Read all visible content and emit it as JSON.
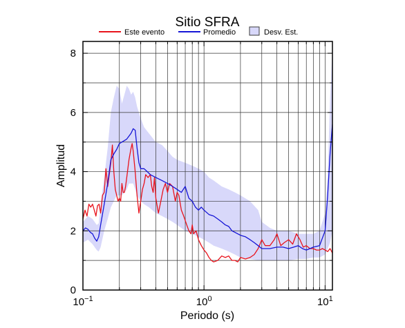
{
  "chart_data": {
    "type": "line",
    "title": "Sitio SFRA",
    "xlabel": "Periodo (s)",
    "ylabel": "Amplitud",
    "x_scale": "log",
    "xlim": [
      0.1,
      11.5
    ],
    "ylim": [
      0,
      8.4
    ],
    "grid": true,
    "legend_position": "top",
    "x_ticks": [
      {
        "value": 0.1,
        "base": "10",
        "exp": "−1"
      },
      {
        "value": 1,
        "base": "10",
        "exp": "0"
      },
      {
        "value": 10,
        "base": "10",
        "exp": "1"
      }
    ],
    "y_ticks": [
      0,
      2,
      4,
      6,
      8
    ],
    "colors": {
      "este_evento": "#e8121b",
      "promedio": "#1414d6",
      "desv_fill": "#d8d8fa",
      "desv_edge": "#3a3a3a"
    },
    "legend": [
      {
        "label": "Este evento",
        "kind": "line",
        "color": "#e8121b"
      },
      {
        "label": "Promedio",
        "kind": "line",
        "color": "#1414d6"
      },
      {
        "label": "Desv. Est.",
        "kind": "box",
        "color": "#d8d8fa"
      }
    ],
    "series": [
      {
        "name": "Este evento",
        "color": "#e8121b",
        "points": [
          [
            0.1,
            2.4
          ],
          [
            0.104,
            2.7
          ],
          [
            0.108,
            2.5
          ],
          [
            0.112,
            2.9
          ],
          [
            0.116,
            2.8
          ],
          [
            0.12,
            2.9
          ],
          [
            0.124,
            2.7
          ],
          [
            0.128,
            2.5
          ],
          [
            0.132,
            2.85
          ],
          [
            0.136,
            2.9
          ],
          [
            0.14,
            2.6
          ],
          [
            0.145,
            3.2
          ],
          [
            0.15,
            3.3
          ],
          [
            0.155,
            4.1
          ],
          [
            0.16,
            3.5
          ],
          [
            0.165,
            3.9
          ],
          [
            0.17,
            4.3
          ],
          [
            0.175,
            4.9
          ],
          [
            0.18,
            4.0
          ],
          [
            0.185,
            3.4
          ],
          [
            0.19,
            3.2
          ],
          [
            0.195,
            3.0
          ],
          [
            0.2,
            3.1
          ],
          [
            0.205,
            3.0
          ],
          [
            0.21,
            3.6
          ],
          [
            0.215,
            3.3
          ],
          [
            0.22,
            3.3
          ],
          [
            0.225,
            3.5
          ],
          [
            0.23,
            3.8
          ],
          [
            0.24,
            4.4
          ],
          [
            0.25,
            4.8
          ],
          [
            0.255,
            4.95
          ],
          [
            0.26,
            4.7
          ],
          [
            0.27,
            4.0
          ],
          [
            0.28,
            3.2
          ],
          [
            0.29,
            2.6
          ],
          [
            0.3,
            3.0
          ],
          [
            0.31,
            3.4
          ],
          [
            0.32,
            3.6
          ],
          [
            0.33,
            3.9
          ],
          [
            0.345,
            3.8
          ],
          [
            0.36,
            3.9
          ],
          [
            0.37,
            3.5
          ],
          [
            0.38,
            3.3
          ],
          [
            0.39,
            3.8
          ],
          [
            0.4,
            3.1
          ],
          [
            0.42,
            2.6
          ],
          [
            0.44,
            3.0
          ],
          [
            0.46,
            3.4
          ],
          [
            0.48,
            3.6
          ],
          [
            0.5,
            3.3
          ],
          [
            0.52,
            3.6
          ],
          [
            0.55,
            3.5
          ],
          [
            0.58,
            3.0
          ],
          [
            0.6,
            3.3
          ],
          [
            0.62,
            3.2
          ],
          [
            0.65,
            2.7
          ],
          [
            0.68,
            2.5
          ],
          [
            0.72,
            2.2
          ],
          [
            0.75,
            2.0
          ],
          [
            0.78,
            1.9
          ],
          [
            0.8,
            2.2
          ],
          [
            0.82,
            1.9
          ],
          [
            0.86,
            2.0
          ],
          [
            0.9,
            1.7
          ],
          [
            0.95,
            1.5
          ],
          [
            1.0,
            1.35
          ],
          [
            1.05,
            1.25
          ],
          [
            1.1,
            1.1
          ],
          [
            1.15,
            1.0
          ],
          [
            1.2,
            0.95
          ],
          [
            1.3,
            1.0
          ],
          [
            1.4,
            1.15
          ],
          [
            1.5,
            1.1
          ],
          [
            1.6,
            1.15
          ],
          [
            1.7,
            1.0
          ],
          [
            1.8,
            1.0
          ],
          [
            1.9,
            0.95
          ],
          [
            2.0,
            1.1
          ],
          [
            2.2,
            1.05
          ],
          [
            2.4,
            1.1
          ],
          [
            2.6,
            1.2
          ],
          [
            2.8,
            1.4
          ],
          [
            3.0,
            1.7
          ],
          [
            3.2,
            1.5
          ],
          [
            3.5,
            1.5
          ],
          [
            3.8,
            1.7
          ],
          [
            4.0,
            1.9
          ],
          [
            4.3,
            1.5
          ],
          [
            4.6,
            1.6
          ],
          [
            5.0,
            1.7
          ],
          [
            5.4,
            1.55
          ],
          [
            5.8,
            1.9
          ],
          [
            6.2,
            1.7
          ],
          [
            6.6,
            1.45
          ],
          [
            7.0,
            1.5
          ],
          [
            7.5,
            1.4
          ],
          [
            8.0,
            1.4
          ],
          [
            8.5,
            1.35
          ],
          [
            9.0,
            1.35
          ],
          [
            9.5,
            1.4
          ],
          [
            10.0,
            1.35
          ],
          [
            10.5,
            1.3
          ],
          [
            11.0,
            1.4
          ],
          [
            11.5,
            1.25
          ]
        ]
      },
      {
        "name": "Promedio",
        "color": "#1414d6",
        "points": [
          [
            0.1,
            2.0
          ],
          [
            0.105,
            2.1
          ],
          [
            0.11,
            2.05
          ],
          [
            0.115,
            1.95
          ],
          [
            0.12,
            1.9
          ],
          [
            0.125,
            1.75
          ],
          [
            0.13,
            1.65
          ],
          [
            0.135,
            1.8
          ],
          [
            0.14,
            2.2
          ],
          [
            0.15,
            2.9
          ],
          [
            0.16,
            3.6
          ],
          [
            0.17,
            4.4
          ],
          [
            0.18,
            4.6
          ],
          [
            0.19,
            4.75
          ],
          [
            0.2,
            4.95
          ],
          [
            0.21,
            5.0
          ],
          [
            0.22,
            5.05
          ],
          [
            0.23,
            5.1
          ],
          [
            0.24,
            5.2
          ],
          [
            0.25,
            5.3
          ],
          [
            0.26,
            5.45
          ],
          [
            0.27,
            5.4
          ],
          [
            0.28,
            4.8
          ],
          [
            0.29,
            4.3
          ],
          [
            0.3,
            4.1
          ],
          [
            0.32,
            4.1
          ],
          [
            0.34,
            4.0
          ],
          [
            0.36,
            3.9
          ],
          [
            0.4,
            3.8
          ],
          [
            0.45,
            3.7
          ],
          [
            0.5,
            3.6
          ],
          [
            0.55,
            3.5
          ],
          [
            0.6,
            3.4
          ],
          [
            0.65,
            3.3
          ],
          [
            0.7,
            3.5
          ],
          [
            0.75,
            3.1
          ],
          [
            0.8,
            3.0
          ],
          [
            0.85,
            2.8
          ],
          [
            0.9,
            2.7
          ],
          [
            0.95,
            2.8
          ],
          [
            1.0,
            2.7
          ],
          [
            1.1,
            2.55
          ],
          [
            1.2,
            2.5
          ],
          [
            1.3,
            2.4
          ],
          [
            1.4,
            2.3
          ],
          [
            1.5,
            2.2
          ],
          [
            1.6,
            2.15
          ],
          [
            1.7,
            2.0
          ],
          [
            1.8,
            1.95
          ],
          [
            2.0,
            1.85
          ],
          [
            2.2,
            1.8
          ],
          [
            2.4,
            1.7
          ],
          [
            2.6,
            1.6
          ],
          [
            2.8,
            1.5
          ],
          [
            3.0,
            1.4
          ],
          [
            3.5,
            1.4
          ],
          [
            4.0,
            1.45
          ],
          [
            4.5,
            1.45
          ],
          [
            5.0,
            1.4
          ],
          [
            5.5,
            1.45
          ],
          [
            6.0,
            1.5
          ],
          [
            6.5,
            1.4
          ],
          [
            7.0,
            1.35
          ],
          [
            7.5,
            1.4
          ],
          [
            8.0,
            1.45
          ],
          [
            9.0,
            1.5
          ],
          [
            10.0,
            2.0
          ],
          [
            10.5,
            3.2
          ],
          [
            11.0,
            4.6
          ],
          [
            11.5,
            5.6
          ]
        ]
      }
    ],
    "std_band": {
      "name": "Desv. Est.",
      "x": [
        0.1,
        0.11,
        0.12,
        0.13,
        0.135,
        0.14,
        0.15,
        0.16,
        0.17,
        0.18,
        0.19,
        0.2,
        0.21,
        0.22,
        0.23,
        0.24,
        0.25,
        0.26,
        0.27,
        0.28,
        0.3,
        0.32,
        0.35,
        0.4,
        0.45,
        0.5,
        0.55,
        0.6,
        0.7,
        0.8,
        0.9,
        1.0,
        1.1,
        1.2,
        1.4,
        1.6,
        1.8,
        2.0,
        2.4,
        2.8,
        3.0,
        3.5,
        4.0,
        5.0,
        6.0,
        7.0,
        8.0,
        9.0,
        10.0,
        10.5,
        11.0,
        11.5
      ],
      "upper": [
        2.3,
        2.5,
        2.4,
        2.2,
        2.25,
        2.9,
        3.8,
        4.8,
        6.0,
        6.5,
        6.9,
        6.8,
        6.3,
        6.6,
        6.9,
        6.8,
        6.6,
        6.7,
        6.5,
        6.2,
        5.8,
        5.5,
        5.3,
        5.0,
        4.9,
        4.7,
        4.5,
        4.4,
        4.3,
        4.2,
        4.1,
        4.0,
        3.8,
        3.7,
        3.5,
        3.4,
        3.3,
        3.2,
        3.0,
        2.7,
        2.3,
        2.1,
        2.0,
        2.0,
        1.9,
        1.9,
        1.9,
        2.0,
        2.6,
        3.8,
        6.5,
        8.2
      ],
      "lower": [
        1.6,
        1.7,
        1.55,
        1.35,
        1.3,
        1.45,
        2.0,
        2.4,
        2.8,
        3.0,
        3.2,
        3.2,
        3.2,
        3.3,
        3.4,
        3.6,
        3.6,
        3.6,
        3.4,
        3.2,
        3.0,
        2.9,
        2.8,
        2.6,
        2.5,
        2.4,
        2.3,
        2.2,
        2.0,
        1.9,
        1.8,
        1.7,
        1.6,
        1.5,
        1.4,
        1.3,
        1.2,
        1.1,
        1.05,
        1.0,
        1.0,
        1.0,
        1.0,
        1.0,
        1.05,
        1.05,
        1.1,
        1.1,
        1.2,
        1.4,
        1.6,
        2.0
      ]
    }
  }
}
